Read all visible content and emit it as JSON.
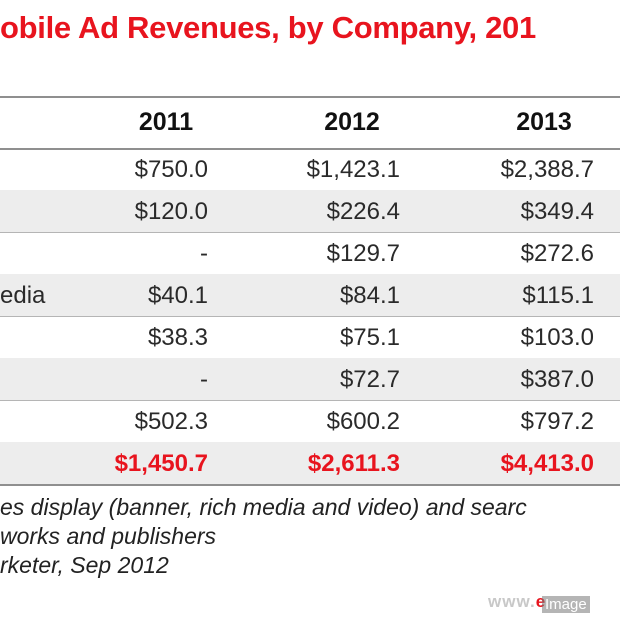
{
  "chart_data": {
    "type": "table",
    "title": "obile Ad Revenues, by Company, 201",
    "columns": [
      "2011",
      "2012",
      "2013"
    ],
    "rows": [
      {
        "label": "",
        "values": [
          "$750.0",
          "$1,423.1",
          "$2,388.7"
        ]
      },
      {
        "label": "",
        "values": [
          "$120.0",
          "$226.4",
          "$349.4"
        ]
      },
      {
        "label": "",
        "values": [
          "-",
          "$129.7",
          "$272.6"
        ]
      },
      {
        "label": "edia",
        "values": [
          "$40.1",
          "$84.1",
          "$115.1"
        ]
      },
      {
        "label": "",
        "values": [
          "$38.3",
          "$75.1",
          "$103.0"
        ]
      },
      {
        "label": "",
        "values": [
          "-",
          "$72.7",
          "$387.0"
        ]
      },
      {
        "label": "",
        "values": [
          "$502.3",
          "$600.2",
          "$797.2"
        ]
      }
    ],
    "total": {
      "label": "",
      "values": [
        "$1,450.7",
        "$2,611.3",
        "$4,413.0"
      ]
    }
  },
  "notes": [
    "es display (banner, rich media and video) and searc",
    "works and publishers",
    "rketer, Sep 2012"
  ],
  "brand": {
    "prefix": "www.",
    "accent": "e"
  },
  "stamp": "Image"
}
